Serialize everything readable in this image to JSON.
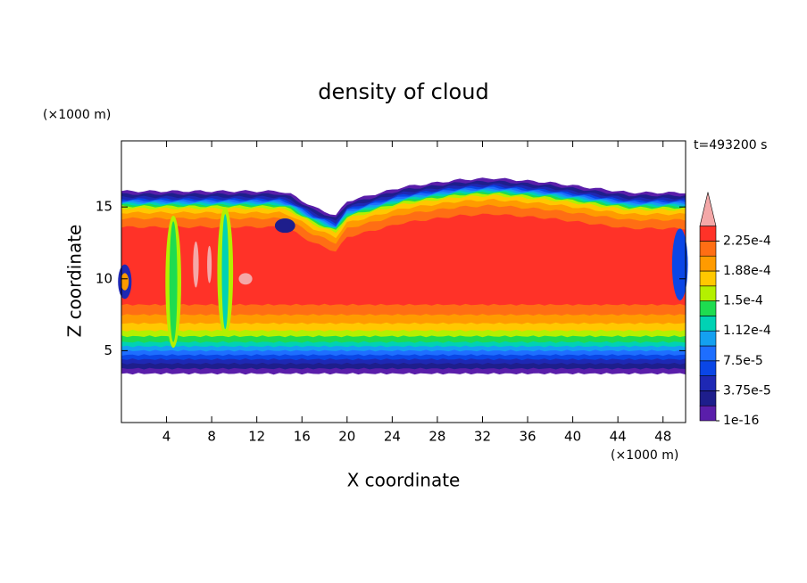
{
  "chart_data": {
    "type": "contour",
    "title": "density of cloud",
    "x_label": "X coordinate",
    "y_label": "Z coordinate",
    "x_unit": "(×1000 m)",
    "y_unit": "(×1000 m)",
    "time_label": "t=493200 s",
    "xlim": [
      0,
      50
    ],
    "ylim": [
      0,
      19.6
    ],
    "xticks": [
      4,
      8,
      12,
      16,
      20,
      24,
      28,
      32,
      36,
      40,
      44,
      48
    ],
    "yticks": [
      5,
      10,
      15
    ],
    "colorbar": {
      "levels": [
        1e-16,
        1.875e-05,
        3.75e-05,
        5.625e-05,
        7.5e-05,
        9.375e-05,
        0.0001125,
        0.00013125,
        0.00015,
        0.00016875,
        0.0001875,
        0.00020625,
        0.000225,
        0.00024375
      ],
      "colors": [
        "#5a1eaa",
        "#1e1e8c",
        "#1e28b4",
        "#0a46e6",
        "#1e6eff",
        "#14a0f0",
        "#00d2b4",
        "#1edc50",
        "#b4f000",
        "#ffc800",
        "#ff9b00",
        "#ff6e14",
        "#ff3228"
      ],
      "extend_color": "#f4a8a8",
      "ticks": [
        1e-16,
        {
          "value": 3.75e-05,
          "label": "3.75e-5"
        },
        {
          "value": 7.5e-05,
          "label": "7.5e-5"
        },
        {
          "value": 0.0001125,
          "label": "1.12e-4"
        },
        {
          "value": 0.00015,
          "label": "1.5e-4"
        },
        {
          "value": 0.0001875,
          "label": "1.88e-4"
        },
        {
          "value": 0.000225,
          "label": "2.25e-4"
        }
      ]
    }
  }
}
